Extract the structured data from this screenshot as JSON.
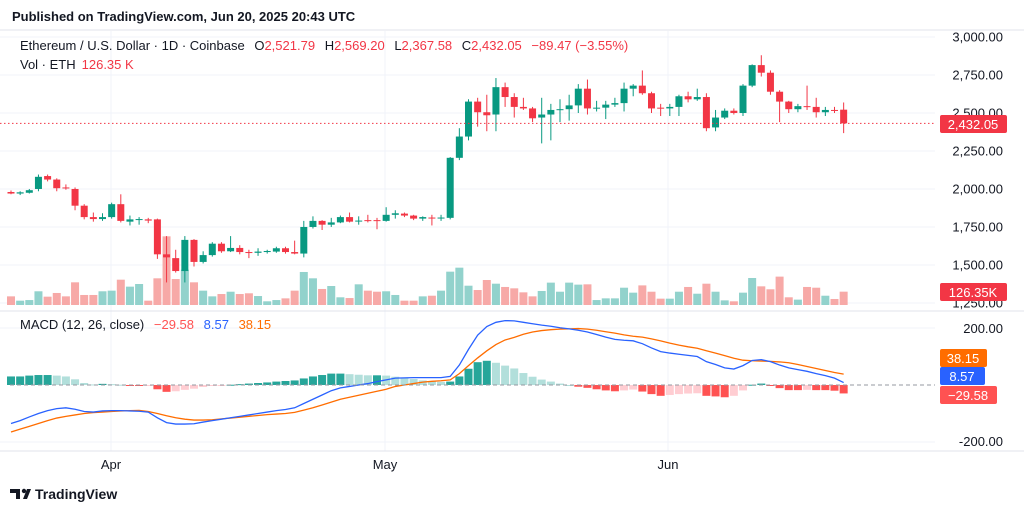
{
  "header": {
    "published": "Published on TradingView.com, Jun 20, 2025 20:43 UTC"
  },
  "legend": {
    "symbol": "Ethereum / U.S. Dollar · 1D · Coinbase",
    "o_label": "O",
    "o": "2,521.79",
    "h_label": "H",
    "h": "2,569.20",
    "l_label": "L",
    "l": "2,367.58",
    "c_label": "C",
    "c": "2,432.05",
    "change": "−89.47 (−3.55%)",
    "vol_label": "Vol · ETH",
    "vol": "126.35 K"
  },
  "macd_legend": {
    "title": "MACD (12, 26, close)",
    "hist": "−29.58",
    "macd": "8.57",
    "signal": "38.15"
  },
  "price_axis": [
    "3,000.00",
    "2,750.00",
    "2,500.00",
    "2,250.00",
    "2,000.00",
    "1,750.00",
    "1,500.00",
    "1,250.00"
  ],
  "price_axis_values": [
    3000,
    2750,
    2500,
    2250,
    2000,
    1750,
    1500,
    1250
  ],
  "macd_axis": [
    "200.00",
    "-200.00"
  ],
  "badges": {
    "last_price": "2,432.05",
    "last_volume": "126.35K",
    "signal": "38.15",
    "macd": "8.57",
    "hist": "−29.58"
  },
  "time_axis": [
    "Apr",
    "May",
    "Jun"
  ],
  "footer": {
    "brand": "TradingView"
  },
  "colors": {
    "up": "#089981",
    "down": "#F23645",
    "vol_up": "#92D2CC",
    "vol_down": "#F7A9A7",
    "macd": "#2962FF",
    "signal": "#FF6D00",
    "hist_up_strong": "#26A69A",
    "hist_up_weak": "#B2DFDB",
    "hist_down_strong": "#FF5252",
    "hist_down_weak": "#FFCDD2"
  },
  "chart_data": {
    "type": "candlestick",
    "title": "Ethereum / U.S. Dollar · 1D · Coinbase",
    "ylim": [
      1250,
      3000
    ],
    "last_price": 2432.05,
    "time_ticks": [
      {
        "label": "Apr",
        "index": 11
      },
      {
        "label": "May",
        "index": 41
      },
      {
        "label": "Jun",
        "index": 72
      }
    ],
    "ohlc": [
      [
        1980,
        1990,
        1965,
        1970
      ],
      [
        1970,
        1985,
        1960,
        1978
      ],
      [
        1975,
        2000,
        1970,
        1992
      ],
      [
        2000,
        2095,
        1985,
        2080
      ],
      [
        2085,
        2095,
        2050,
        2062
      ],
      [
        2062,
        2070,
        1985,
        2005
      ],
      [
        2010,
        2030,
        1995,
        2008
      ],
      [
        2000,
        2010,
        1860,
        1890
      ],
      [
        1890,
        1900,
        1800,
        1815
      ],
      [
        1815,
        1845,
        1785,
        1802
      ],
      [
        1802,
        1840,
        1790,
        1815
      ],
      [
        1815,
        1910,
        1805,
        1900
      ],
      [
        1900,
        1965,
        1780,
        1790
      ],
      [
        1785,
        1825,
        1760,
        1800
      ],
      [
        1800,
        1815,
        1765,
        1802
      ],
      [
        1800,
        1810,
        1775,
        1792
      ],
      [
        1800,
        1805,
        1540,
        1570
      ],
      [
        1570,
        1690,
        1385,
        1550
      ],
      [
        1545,
        1600,
        1450,
        1460
      ],
      [
        1460,
        1690,
        1385,
        1665
      ],
      [
        1665,
        1670,
        1490,
        1520
      ],
      [
        1520,
        1590,
        1510,
        1565
      ],
      [
        1565,
        1650,
        1555,
        1640
      ],
      [
        1640,
        1650,
        1580,
        1590
      ],
      [
        1590,
        1690,
        1585,
        1612
      ],
      [
        1612,
        1630,
        1570,
        1585
      ],
      [
        1585,
        1600,
        1545,
        1580
      ],
      [
        1580,
        1610,
        1560,
        1588
      ],
      [
        1585,
        1600,
        1575,
        1592
      ],
      [
        1588,
        1620,
        1580,
        1610
      ],
      [
        1610,
        1620,
        1575,
        1585
      ],
      [
        1585,
        1660,
        1570,
        1575
      ],
      [
        1575,
        1790,
        1550,
        1750
      ],
      [
        1750,
        1820,
        1740,
        1790
      ],
      [
        1790,
        1795,
        1730,
        1765
      ],
      [
        1765,
        1810,
        1750,
        1780
      ],
      [
        1780,
        1825,
        1775,
        1815
      ],
      [
        1815,
        1845,
        1780,
        1785
      ],
      [
        1788,
        1820,
        1765,
        1792
      ],
      [
        1795,
        1830,
        1780,
        1793
      ],
      [
        1795,
        1810,
        1735,
        1792
      ],
      [
        1790,
        1880,
        1785,
        1830
      ],
      [
        1830,
        1860,
        1805,
        1840
      ],
      [
        1838,
        1845,
        1815,
        1825
      ],
      [
        1825,
        1830,
        1795,
        1805
      ],
      [
        1805,
        1820,
        1790,
        1815
      ],
      [
        1812,
        1830,
        1760,
        1810
      ],
      [
        1810,
        1830,
        1790,
        1812
      ],
      [
        1810,
        2210,
        1800,
        2205
      ],
      [
        2205,
        2400,
        2190,
        2345
      ],
      [
        2345,
        2590,
        2320,
        2575
      ],
      [
        2575,
        2600,
        2410,
        2505
      ],
      [
        2505,
        2620,
        2380,
        2485
      ],
      [
        2490,
        2730,
        2380,
        2670
      ],
      [
        2670,
        2700,
        2540,
        2605
      ],
      [
        2605,
        2630,
        2470,
        2540
      ],
      [
        2540,
        2600,
        2520,
        2530
      ],
      [
        2530,
        2540,
        2440,
        2465
      ],
      [
        2470,
        2600,
        2300,
        2490
      ],
      [
        2490,
        2560,
        2320,
        2520
      ],
      [
        2525,
        2590,
        2440,
        2525
      ],
      [
        2525,
        2620,
        2450,
        2550
      ],
      [
        2550,
        2690,
        2500,
        2660
      ],
      [
        2660,
        2720,
        2490,
        2530
      ],
      [
        2530,
        2580,
        2510,
        2535
      ],
      [
        2535,
        2580,
        2460,
        2555
      ],
      [
        2555,
        2600,
        2540,
        2565
      ],
      [
        2565,
        2700,
        2510,
        2660
      ],
      [
        2660,
        2690,
        2610,
        2680
      ],
      [
        2680,
        2780,
        2620,
        2630
      ],
      [
        2630,
        2640,
        2500,
        2530
      ],
      [
        2535,
        2560,
        2480,
        2532
      ],
      [
        2530,
        2560,
        2480,
        2540
      ],
      [
        2540,
        2620,
        2480,
        2610
      ],
      [
        2610,
        2640,
        2570,
        2590
      ],
      [
        2590,
        2660,
        2580,
        2605
      ],
      [
        2605,
        2630,
        2380,
        2400
      ],
      [
        2405,
        2520,
        2380,
        2470
      ],
      [
        2470,
        2530,
        2460,
        2515
      ],
      [
        2515,
        2530,
        2490,
        2500
      ],
      [
        2500,
        2690,
        2480,
        2680
      ],
      [
        2680,
        2820,
        2670,
        2815
      ],
      [
        2815,
        2880,
        2740,
        2765
      ],
      [
        2765,
        2780,
        2620,
        2640
      ],
      [
        2640,
        2650,
        2440,
        2575
      ],
      [
        2575,
        2580,
        2500,
        2525
      ],
      [
        2525,
        2560,
        2505,
        2545
      ],
      [
        2545,
        2680,
        2520,
        2540
      ],
      [
        2540,
        2600,
        2470,
        2505
      ],
      [
        2505,
        2540,
        2480,
        2520
      ],
      [
        2520,
        2540,
        2500,
        2518
      ],
      [
        2521.79,
        2569.2,
        2367.58,
        2432.05
      ]
    ],
    "volume_k": [
      82,
      41,
      47,
      130,
      79,
      114,
      82,
      215,
      95,
      95,
      130,
      136,
      240,
      174,
      199,
      41,
      253,
      651,
      246,
      335,
      215,
      136,
      82,
      104,
      126,
      104,
      111,
      85,
      35,
      47,
      63,
      136,
      313,
      253,
      152,
      180,
      73,
      66,
      196,
      136,
      126,
      130,
      95,
      41,
      41,
      82,
      88,
      136,
      316,
      354,
      183,
      142,
      237,
      202,
      171,
      158,
      120,
      82,
      133,
      212,
      126,
      212,
      193,
      196,
      47,
      63,
      63,
      164,
      117,
      186,
      126,
      60,
      60,
      126,
      171,
      107,
      202,
      126,
      44,
      35,
      117,
      256,
      177,
      149,
      269,
      73,
      51,
      171,
      164,
      88,
      57,
      126.35
    ],
    "macd": [
      -135,
      -125,
      -112,
      -100,
      -90,
      -83,
      -80,
      -85,
      -93,
      -95,
      -91,
      -90,
      -90,
      -91,
      -92,
      -95,
      -115,
      -132,
      -137,
      -137,
      -136,
      -130,
      -125,
      -120,
      -115,
      -110,
      -105,
      -100,
      -95,
      -90,
      -86,
      -80,
      -65,
      -50,
      -35,
      -20,
      -10,
      -5,
      0,
      5,
      12,
      18,
      24,
      25,
      26,
      26,
      26,
      26,
      30,
      70,
      125,
      175,
      205,
      220,
      226,
      225,
      220,
      215,
      210,
      206,
      201,
      197,
      192,
      186,
      177,
      168,
      160,
      157,
      155,
      145,
      130,
      117,
      112,
      108,
      104,
      100,
      82,
      72,
      60,
      56,
      68,
      86,
      89,
      82,
      70,
      60,
      54,
      48,
      40,
      33,
      24,
      8.57
    ],
    "signal": [
      -165,
      -155,
      -145,
      -135,
      -125,
      -116,
      -110,
      -105,
      -100,
      -97,
      -95,
      -93,
      -91,
      -90,
      -89,
      -93,
      -100,
      -108,
      -115,
      -120,
      -123,
      -123,
      -122,
      -119,
      -116,
      -113,
      -110,
      -107,
      -104,
      -102,
      -100,
      -96,
      -88,
      -80,
      -70,
      -60,
      -50,
      -43,
      -36,
      -29,
      -22,
      -15,
      -5,
      0,
      5,
      10,
      13,
      15,
      18,
      40,
      68,
      95,
      120,
      142,
      158,
      167,
      178,
      186,
      191,
      194,
      196,
      197,
      198,
      196,
      192,
      187,
      182,
      176,
      171,
      168,
      162,
      155,
      147,
      140,
      134,
      129,
      120,
      112,
      103,
      94,
      87,
      85,
      84,
      83,
      81,
      78,
      72,
      65,
      58,
      51,
      44,
      38.15
    ],
    "macd_ylim": [
      -200,
      200
    ]
  }
}
